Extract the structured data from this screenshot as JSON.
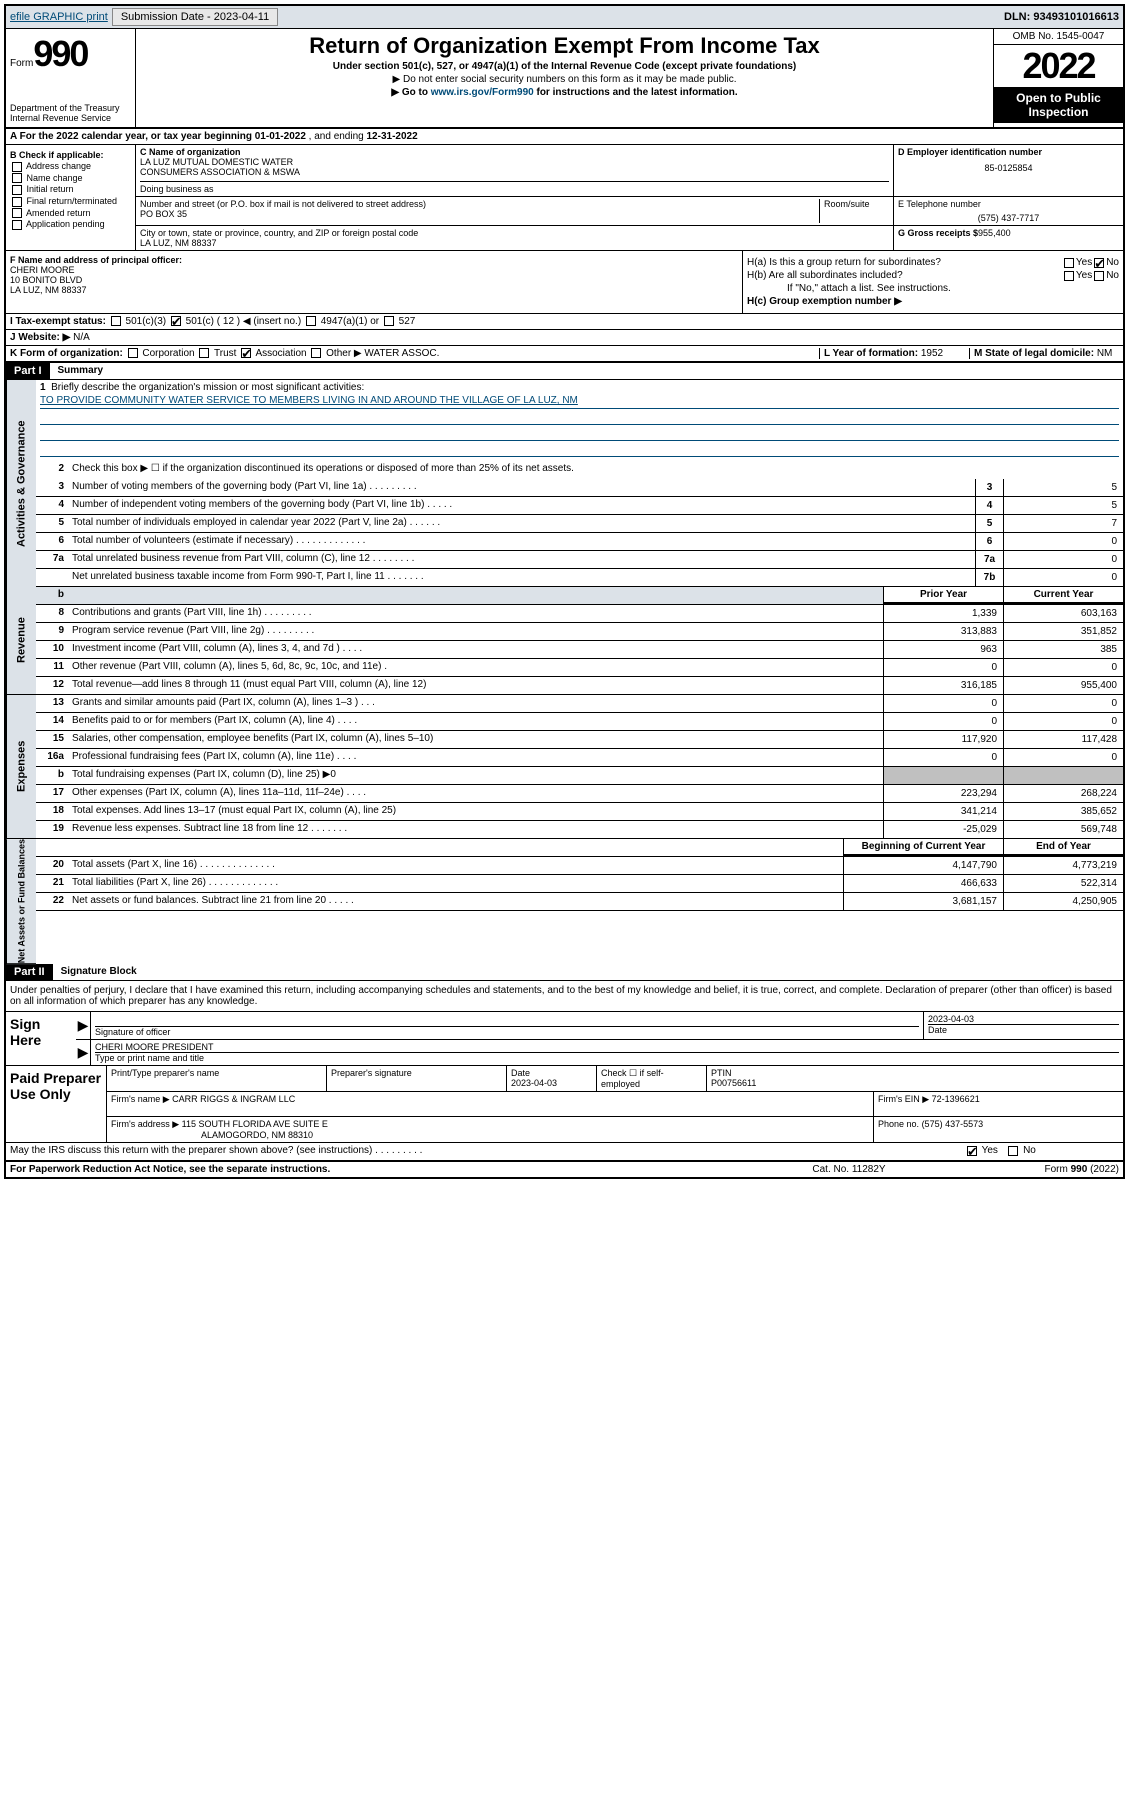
{
  "topbar": {
    "efile": "efile GRAPHIC print",
    "subdate_lbl": "Submission Date - 2023-04-11",
    "dln": "DLN: 93493101016613"
  },
  "header": {
    "form_word": "Form",
    "form_num": "990",
    "dept": "Department of the Treasury",
    "irs": "Internal Revenue Service",
    "title": "Return of Organization Exempt From Income Tax",
    "sub1": "Under section 501(c), 527, or 4947(a)(1) of the Internal Revenue Code (except private foundations)",
    "sub2": "▶ Do not enter social security numbers on this form as it may be made public.",
    "sub3_pre": "▶ Go to ",
    "sub3_link": "www.irs.gov/Form990",
    "sub3_post": " for instructions and the latest information.",
    "omb": "OMB No. 1545-0047",
    "year": "2022",
    "inspection": "Open to Public Inspection"
  },
  "line_a": {
    "pre": "A For the 2022 calendar year, or tax year beginning ",
    "begin": "01-01-2022",
    "mid": " , and ending ",
    "end": "12-31-2022"
  },
  "col_b": {
    "hdr": "B Check if applicable:",
    "items": [
      "Address change",
      "Name change",
      "Initial return",
      "Final return/terminated",
      "Amended return",
      "Application pending"
    ]
  },
  "col_c": {
    "c_lbl": "C Name of organization",
    "org1": "LA LUZ MUTUAL DOMESTIC WATER",
    "org2": "CONSUMERS ASSOCIATION & MSWA",
    "dba_lbl": "Doing business as",
    "addr_lbl": "Number and street (or P.O. box if mail is not delivered to street address)",
    "room_lbl": "Room/suite",
    "addr": "PO BOX 35",
    "city_lbl": "City or town, state or province, country, and ZIP or foreign postal code",
    "city": "LA LUZ, NM  88337"
  },
  "col_d": {
    "d_lbl": "D Employer identification number",
    "ein": "85-0125854",
    "e_lbl": "E Telephone number",
    "phone": "(575) 437-7717",
    "g_lbl": "G Gross receipts $",
    "gross": "955,400"
  },
  "sec_f": {
    "f_lbl": "F Name and address of principal officer:",
    "name": "CHERI MOORE",
    "addr1": "10 BONITO BLVD",
    "addr2": "LA LUZ, NM  88337"
  },
  "sec_h": {
    "ha": "H(a)  Is this a group return for subordinates?",
    "hb": "H(b)  Are all subordinates included?",
    "hb_note": "If \"No,\" attach a list. See instructions.",
    "hc": "H(c)  Group exemption number ▶",
    "yes": "Yes",
    "no": "No"
  },
  "line_i": {
    "lbl": "I   Tax-exempt status:",
    "o1": "501(c)(3)",
    "o2": "501(c) ( 12 ) ◀ (insert no.)",
    "o3": "4947(a)(1) or",
    "o4": "527"
  },
  "line_j": {
    "lbl": "J   Website: ▶",
    "val": "N/A"
  },
  "line_k": {
    "lbl": "K Form of organization:",
    "o1": "Corporation",
    "o2": "Trust",
    "o3": "Association",
    "o4": "Other ▶",
    "other": "WATER ASSOC.",
    "l_lbl": "L Year of formation:",
    "l_val": "1952",
    "m_lbl": "M State of legal domicile:",
    "m_val": "NM"
  },
  "part1": {
    "hdr": "Part I",
    "sub": "Summary"
  },
  "sides": {
    "gov": "Activities & Governance",
    "rev": "Revenue",
    "exp": "Expenses",
    "net": "Net Assets or Fund Balances"
  },
  "q1": {
    "lbl": "Briefly describe the organization's mission or most significant activities:",
    "mission": "TO PROVIDE COMMUNITY WATER SERVICE TO MEMBERS LIVING IN AND AROUND THE VILLAGE OF LA LUZ, NM"
  },
  "q2": "Check this box ▶ ☐  if the organization discontinued its operations or disposed of more than 25% of its net assets.",
  "gov_rows": [
    {
      "n": "3",
      "t": "Number of voting members of the governing body (Part VI, line 1a)  .    .    .    .    .    .    .    .    .",
      "b": "3",
      "v": "5"
    },
    {
      "n": "4",
      "t": "Number of independent voting members of the governing body (Part VI, line 1b)  .    .    .    .    .",
      "b": "4",
      "v": "5"
    },
    {
      "n": "5",
      "t": "Total number of individuals employed in calendar year 2022 (Part V, line 2a)  .    .    .    .    .    .",
      "b": "5",
      "v": "7"
    },
    {
      "n": "6",
      "t": "Total number of volunteers (estimate if necessary)  .    .    .    .    .    .    .    .    .    .    .    .    .",
      "b": "6",
      "v": "0"
    },
    {
      "n": "7a",
      "t": "Total unrelated business revenue from Part VIII, column (C), line 12  .    .    .    .    .    .    .    .",
      "b": "7a",
      "v": "0"
    },
    {
      "n": "",
      "t": "Net unrelated business taxable income from Form 990-T, Part I, line 11  .    .    .    .    .    .    .",
      "b": "7b",
      "v": "0"
    }
  ],
  "col_hdr": {
    "prior": "Prior Year",
    "curr": "Current Year"
  },
  "rev_rows": [
    {
      "n": "8",
      "t": "Contributions and grants (Part VIII, line 1h)  .    .    .    .    .    .    .    .    .",
      "p": "1,339",
      "c": "603,163"
    },
    {
      "n": "9",
      "t": "Program service revenue (Part VIII, line 2g)  .    .    .    .    .    .    .    .    .",
      "p": "313,883",
      "c": "351,852"
    },
    {
      "n": "10",
      "t": "Investment income (Part VIII, column (A), lines 3, 4, and 7d )  .    .    .    .",
      "p": "963",
      "c": "385"
    },
    {
      "n": "11",
      "t": "Other revenue (Part VIII, column (A), lines 5, 6d, 8c, 9c, 10c, and 11e)  .",
      "p": "0",
      "c": "0"
    },
    {
      "n": "12",
      "t": "Total revenue—add lines 8 through 11 (must equal Part VIII, column (A), line 12)",
      "p": "316,185",
      "c": "955,400"
    }
  ],
  "exp_rows": [
    {
      "n": "13",
      "t": "Grants and similar amounts paid (Part IX, column (A), lines 1–3 )  .    .    .",
      "p": "0",
      "c": "0"
    },
    {
      "n": "14",
      "t": "Benefits paid to or for members (Part IX, column (A), line 4)  .    .    .    .",
      "p": "0",
      "c": "0"
    },
    {
      "n": "15",
      "t": "Salaries, other compensation, employee benefits (Part IX, column (A), lines 5–10)",
      "p": "117,920",
      "c": "117,428"
    },
    {
      "n": "16a",
      "t": "Professional fundraising fees (Part IX, column (A), line 11e)  .    .    .    .",
      "p": "0",
      "c": "0"
    },
    {
      "n": "b",
      "t": "Total fundraising expenses (Part IX, column (D), line 25) ▶0",
      "p": "",
      "c": "",
      "gray": true
    },
    {
      "n": "17",
      "t": "Other expenses (Part IX, column (A), lines 11a–11d, 11f–24e)  .    .    .    .",
      "p": "223,294",
      "c": "268,224"
    },
    {
      "n": "18",
      "t": "Total expenses. Add lines 13–17 (must equal Part IX, column (A), line 25)",
      "p": "341,214",
      "c": "385,652"
    },
    {
      "n": "19",
      "t": "Revenue less expenses. Subtract line 18 from line 12  .    .    .    .    .    .    .",
      "p": "-25,029",
      "c": "569,748"
    }
  ],
  "net_hdr": {
    "beg": "Beginning of Current Year",
    "end": "End of Year"
  },
  "net_rows": [
    {
      "n": "20",
      "t": "Total assets (Part X, line 16)  .    .    .    .    .    .    .    .    .    .    .    .    .    .",
      "p": "4,147,790",
      "c": "4,773,219"
    },
    {
      "n": "21",
      "t": "Total liabilities (Part X, line 26)  .    .    .    .    .    .    .    .    .    .    .    .    .",
      "p": "466,633",
      "c": "522,314"
    },
    {
      "n": "22",
      "t": "Net assets or fund balances. Subtract line 21 from line 20  .    .    .    .    .",
      "p": "3,681,157",
      "c": "4,250,905"
    }
  ],
  "part2": {
    "hdr": "Part II",
    "sub": "Signature Block"
  },
  "sig": {
    "decl": "Under penalties of perjury, I declare that I have examined this return, including accompanying schedules and statements, and to the best of my knowledge and belief, it is true, correct, and complete. Declaration of preparer (other than officer) is based on all information of which preparer has any knowledge.",
    "here": "Sign Here",
    "sig_lbl": "Signature of officer",
    "date_lbl": "Date",
    "date": "2023-04-03",
    "name": "CHERI MOORE PRESIDENT",
    "name_lbl": "Type or print name and title"
  },
  "prep": {
    "lbl": "Paid Preparer Use Only",
    "col1": "Print/Type preparer's name",
    "col2": "Preparer's signature",
    "col3": "Date",
    "date": "2023-04-03",
    "col4": "Check ☐ if self-employed",
    "col5": "PTIN",
    "ptin": "P00756611",
    "firm_lbl": "Firm's name    ▶",
    "firm": "CARR RIGGS & INGRAM LLC",
    "ein_lbl": "Firm's EIN ▶",
    "ein": "72-1396621",
    "addr_lbl": "Firm's address ▶",
    "addr1": "115 SOUTH FLORIDA AVE SUITE E",
    "addr2": "ALAMOGORDO, NM 88310",
    "ph_lbl": "Phone no.",
    "phone": "(575) 437-5573"
  },
  "discuss": {
    "q": "May the IRS discuss this return with the preparer shown above? (see instructions)  .    .    .    .    .    .    .    .    .",
    "yes": "Yes",
    "no": "No"
  },
  "footer": {
    "left": "For Paperwork Reduction Act Notice, see the separate instructions.",
    "mid": "Cat. No. 11282Y",
    "right": "Form 990 (2022)"
  }
}
